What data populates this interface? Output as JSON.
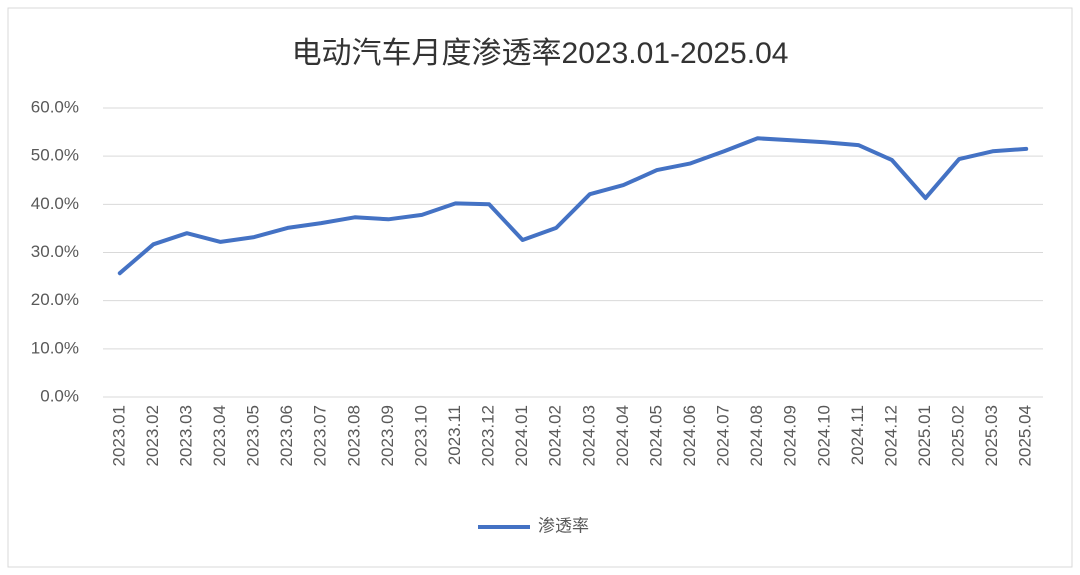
{
  "chart_data": {
    "type": "line",
    "title": "电动汽车月度渗透率2023.01-2025.04",
    "categories": [
      "2023.01",
      "2023.02",
      "2023.03",
      "2023.04",
      "2023.05",
      "2023.06",
      "2023.07",
      "2023.08",
      "2023.09",
      "2023.10",
      "2023.11",
      "2023.12",
      "2024.01",
      "2024.02",
      "2024.03",
      "2024.04",
      "2024.05",
      "2024.06",
      "2024.07",
      "2024.08",
      "2024.09",
      "2024.10",
      "2024.11",
      "2024.12",
      "2025.01",
      "2025.02",
      "2025.03",
      "2025.04"
    ],
    "series": [
      {
        "name": "渗透率",
        "color": "#4472c4",
        "values": [
          25.7,
          31.7,
          34.0,
          32.2,
          33.2,
          35.1,
          36.1,
          37.3,
          36.9,
          37.8,
          40.2,
          40.0,
          32.6,
          35.1,
          42.1,
          44.0,
          47.1,
          48.5,
          51.0,
          53.7,
          53.3,
          52.9,
          52.3,
          49.2,
          41.3,
          49.4,
          51.0,
          51.5
        ]
      }
    ],
    "ylim": [
      0,
      60
    ],
    "yticks": [
      {
        "value": 0,
        "label": "0.0%"
      },
      {
        "value": 10,
        "label": "10.0%"
      },
      {
        "value": 20,
        "label": "20.0%"
      },
      {
        "value": 30,
        "label": "30.0%"
      },
      {
        "value": 40,
        "label": "40.0%"
      },
      {
        "value": 50,
        "label": "50.0%"
      },
      {
        "value": 60,
        "label": "60.0%"
      }
    ],
    "grid": true,
    "legend": "bottom"
  }
}
